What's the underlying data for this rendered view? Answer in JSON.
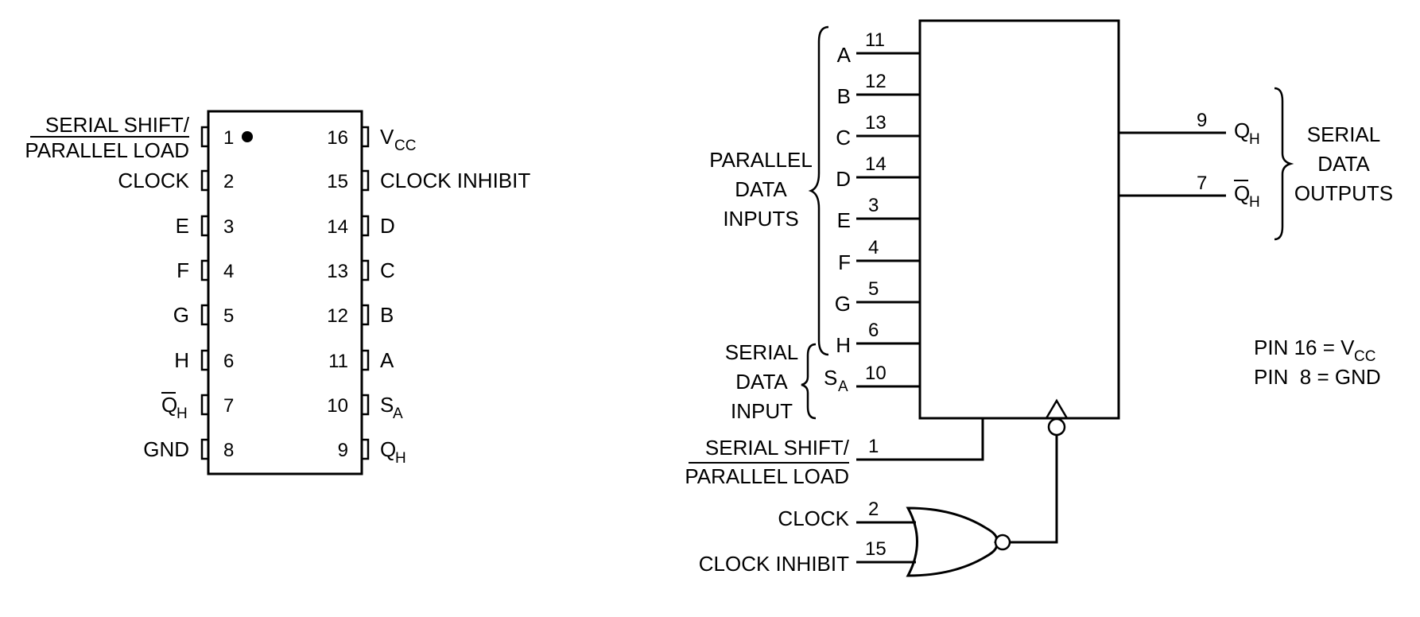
{
  "colors": {
    "ink": "#000000",
    "background": "#ffffff"
  },
  "pinout": {
    "left_pins": [
      {
        "num": "1",
        "label_line1": "SERIAL SHIFT/",
        "label_line2": "PARALLEL LOAD"
      },
      {
        "num": "2",
        "label": "CLOCK"
      },
      {
        "num": "3",
        "label": "E"
      },
      {
        "num": "4",
        "label": "F"
      },
      {
        "num": "5",
        "label": "G"
      },
      {
        "num": "6",
        "label": "H"
      },
      {
        "num": "7",
        "label": "Q",
        "sub": "H"
      },
      {
        "num": "8",
        "label": "GND"
      }
    ],
    "right_pins": [
      {
        "num": "16",
        "label": "V",
        "sub": "CC"
      },
      {
        "num": "15",
        "label": "CLOCK INHIBIT"
      },
      {
        "num": "14",
        "label": "D"
      },
      {
        "num": "13",
        "label": "C"
      },
      {
        "num": "12",
        "label": "B"
      },
      {
        "num": "11",
        "label": "A"
      },
      {
        "num": "10",
        "label": "S",
        "sub": "A"
      },
      {
        "num": "9",
        "label": "Q",
        "sub": "H"
      }
    ]
  },
  "logic": {
    "inputs": [
      {
        "name": "A",
        "num": "11"
      },
      {
        "name": "B",
        "num": "12"
      },
      {
        "name": "C",
        "num": "13"
      },
      {
        "name": "D",
        "num": "14"
      },
      {
        "name": "E",
        "num": "3"
      },
      {
        "name": "F",
        "num": "4"
      },
      {
        "name": "G",
        "num": "5"
      },
      {
        "name": "H",
        "num": "6"
      },
      {
        "name": "S",
        "sub": "A",
        "num": "10"
      }
    ],
    "parallel_group": [
      "PARALLEL",
      "DATA",
      "INPUTS"
    ],
    "serial_input_group": [
      "SERIAL",
      "DATA",
      "INPUT"
    ],
    "outputs": [
      {
        "name": "Q",
        "sub": "H",
        "num": "9"
      },
      {
        "name": "Q",
        "sub": "H",
        "num": "7"
      }
    ],
    "output_group": [
      "SERIAL",
      "DATA",
      "OUTPUTS"
    ],
    "shift_load": {
      "line1": "SERIAL SHIFT/",
      "line2": "PARALLEL LOAD",
      "num": "1"
    },
    "clock": {
      "label": "CLOCK",
      "num": "2"
    },
    "clock_inhibit": {
      "label": "CLOCK INHIBIT",
      "num": "15"
    },
    "power_note": {
      "line1_prefix": "PIN 16 = V",
      "line1_sub": "CC",
      "line2": "PIN  8 = GND"
    }
  }
}
